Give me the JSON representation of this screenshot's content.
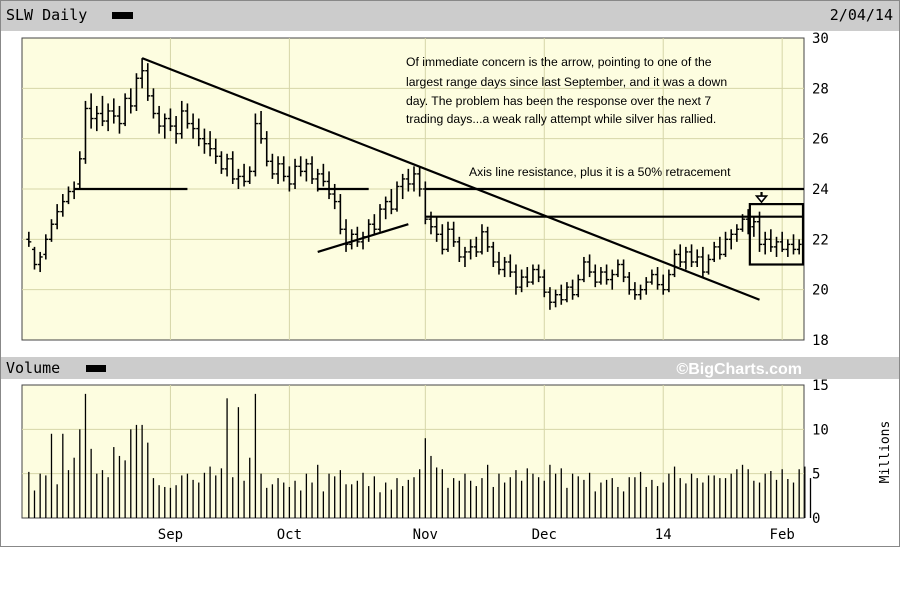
{
  "header": {
    "symbol_label": "SLW Daily",
    "date": "2/04/14"
  },
  "volume_header": {
    "label": "Volume"
  },
  "watermark": "©BigCharts.com",
  "volume_axis_unit": "Millions",
  "annotations": {
    "note_lines": [
      "Of immediate concern is the arrow, pointing to one of the",
      "largest range days since last September, and it was a down",
      "day.  The problem has been the response over the next 7",
      "trading days...a weak rally attempt while silver has rallied."
    ],
    "resistance_label": "Axis line resistance, plus it is a 50% retracement"
  },
  "colors": {
    "plot_bg": "#fdfde0",
    "header_bg": "#cccccc",
    "grid": "#d6d6a8",
    "price": "#000000",
    "trendline": "#000000"
  },
  "chart_data": [
    {
      "type": "ohlc",
      "title": "SLW Daily",
      "ylim": [
        18,
        30
      ],
      "y_ticks": [
        18,
        20,
        22,
        24,
        26,
        28,
        30
      ],
      "y_axis_side": "right",
      "grid": true,
      "x_ticks": [
        {
          "label": "Sep",
          "index": 25
        },
        {
          "label": "Oct",
          "index": 46
        },
        {
          "label": "Nov",
          "index": 70
        },
        {
          "label": "Dec",
          "index": 91
        },
        {
          "label": "14",
          "index": 112
        },
        {
          "label": "Feb",
          "index": 133
        }
      ],
      "bars": [
        {
          "o": 22.0,
          "h": 22.3,
          "l": 21.7,
          "c": 21.9
        },
        {
          "o": 21.6,
          "h": 21.7,
          "l": 20.8,
          "c": 21.0
        },
        {
          "o": 21.0,
          "h": 21.5,
          "l": 20.7,
          "c": 21.3
        },
        {
          "o": 21.4,
          "h": 22.2,
          "l": 21.2,
          "c": 22.0
        },
        {
          "o": 22.0,
          "h": 22.8,
          "l": 21.9,
          "c": 22.6
        },
        {
          "o": 22.6,
          "h": 23.4,
          "l": 22.4,
          "c": 23.1
        },
        {
          "o": 23.1,
          "h": 23.8,
          "l": 22.9,
          "c": 23.5
        },
        {
          "o": 23.5,
          "h": 24.1,
          "l": 23.4,
          "c": 23.9
        },
        {
          "o": 23.9,
          "h": 24.3,
          "l": 23.6,
          "c": 24.0
        },
        {
          "o": 24.2,
          "h": 25.5,
          "l": 24.0,
          "c": 25.2
        },
        {
          "o": 25.2,
          "h": 27.5,
          "l": 25.0,
          "c": 27.2
        },
        {
          "o": 27.2,
          "h": 27.8,
          "l": 26.4,
          "c": 26.8
        },
        {
          "o": 26.8,
          "h": 27.3,
          "l": 26.3,
          "c": 27.0
        },
        {
          "o": 27.0,
          "h": 27.7,
          "l": 26.5,
          "c": 26.7
        },
        {
          "o": 26.7,
          "h": 27.4,
          "l": 26.3,
          "c": 27.1
        },
        {
          "o": 27.1,
          "h": 27.6,
          "l": 26.6,
          "c": 26.9
        },
        {
          "o": 26.9,
          "h": 27.3,
          "l": 26.2,
          "c": 26.6
        },
        {
          "o": 26.6,
          "h": 27.8,
          "l": 26.5,
          "c": 27.6
        },
        {
          "o": 27.6,
          "h": 28.0,
          "l": 27.0,
          "c": 27.3
        },
        {
          "o": 27.3,
          "h": 28.6,
          "l": 27.1,
          "c": 28.4
        },
        {
          "o": 28.4,
          "h": 29.2,
          "l": 28.0,
          "c": 28.7
        },
        {
          "o": 28.7,
          "h": 29.0,
          "l": 27.5,
          "c": 27.7
        },
        {
          "o": 27.7,
          "h": 28.0,
          "l": 26.8,
          "c": 27.0
        },
        {
          "o": 27.0,
          "h": 27.3,
          "l": 26.2,
          "c": 26.5
        },
        {
          "o": 26.5,
          "h": 27.0,
          "l": 26.0,
          "c": 26.8
        },
        {
          "o": 26.8,
          "h": 27.2,
          "l": 26.3,
          "c": 26.5
        },
        {
          "o": 26.5,
          "h": 26.9,
          "l": 25.8,
          "c": 26.2
        },
        {
          "o": 26.2,
          "h": 27.5,
          "l": 26.0,
          "c": 27.1
        },
        {
          "o": 27.1,
          "h": 27.4,
          "l": 26.4,
          "c": 26.6
        },
        {
          "o": 26.6,
          "h": 27.0,
          "l": 26.0,
          "c": 26.4
        },
        {
          "o": 26.4,
          "h": 26.8,
          "l": 25.7,
          "c": 26.0
        },
        {
          "o": 26.0,
          "h": 26.4,
          "l": 25.4,
          "c": 25.8
        },
        {
          "o": 25.8,
          "h": 26.3,
          "l": 25.3,
          "c": 25.6
        },
        {
          "o": 25.6,
          "h": 26.0,
          "l": 25.0,
          "c": 25.3
        },
        {
          "o": 25.3,
          "h": 25.5,
          "l": 24.6,
          "c": 24.8
        },
        {
          "o": 24.8,
          "h": 25.4,
          "l": 24.5,
          "c": 25.2
        },
        {
          "o": 25.2,
          "h": 25.5,
          "l": 24.2,
          "c": 24.4
        },
        {
          "o": 24.4,
          "h": 24.8,
          "l": 24.0,
          "c": 24.5
        },
        {
          "o": 24.5,
          "h": 25.0,
          "l": 24.1,
          "c": 24.3
        },
        {
          "o": 24.3,
          "h": 24.9,
          "l": 24.2,
          "c": 24.7
        },
        {
          "o": 24.7,
          "h": 27.0,
          "l": 24.5,
          "c": 26.6
        },
        {
          "o": 26.6,
          "h": 27.1,
          "l": 25.8,
          "c": 26.0
        },
        {
          "o": 26.0,
          "h": 26.3,
          "l": 24.9,
          "c": 25.1
        },
        {
          "o": 25.1,
          "h": 25.4,
          "l": 24.4,
          "c": 24.6
        },
        {
          "o": 24.6,
          "h": 25.3,
          "l": 24.2,
          "c": 25.0
        },
        {
          "o": 25.0,
          "h": 25.3,
          "l": 24.3,
          "c": 24.5
        },
        {
          "o": 24.5,
          "h": 24.9,
          "l": 23.9,
          "c": 24.2
        },
        {
          "o": 24.2,
          "h": 25.2,
          "l": 24.0,
          "c": 24.9
        },
        {
          "o": 24.9,
          "h": 25.3,
          "l": 24.5,
          "c": 24.7
        },
        {
          "o": 24.7,
          "h": 25.2,
          "l": 24.3,
          "c": 25.0
        },
        {
          "o": 25.0,
          "h": 25.3,
          "l": 24.2,
          "c": 24.4
        },
        {
          "o": 24.4,
          "h": 24.8,
          "l": 23.9,
          "c": 24.6
        },
        {
          "o": 24.6,
          "h": 25.0,
          "l": 24.1,
          "c": 24.3
        },
        {
          "o": 24.3,
          "h": 24.7,
          "l": 23.6,
          "c": 23.8
        },
        {
          "o": 23.8,
          "h": 24.2,
          "l": 23.2,
          "c": 23.5
        },
        {
          "o": 23.5,
          "h": 23.8,
          "l": 22.2,
          "c": 22.4
        },
        {
          "o": 22.4,
          "h": 22.8,
          "l": 21.5,
          "c": 21.8
        },
        {
          "o": 21.8,
          "h": 22.4,
          "l": 21.6,
          "c": 22.2
        },
        {
          "o": 22.2,
          "h": 22.5,
          "l": 21.7,
          "c": 21.9
        },
        {
          "o": 21.9,
          "h": 22.3,
          "l": 21.6,
          "c": 22.1
        },
        {
          "o": 22.1,
          "h": 22.8,
          "l": 21.9,
          "c": 22.6
        },
        {
          "o": 22.6,
          "h": 23.0,
          "l": 22.2,
          "c": 22.4
        },
        {
          "o": 22.4,
          "h": 23.4,
          "l": 22.3,
          "c": 23.2
        },
        {
          "o": 23.2,
          "h": 23.7,
          "l": 22.8,
          "c": 23.5
        },
        {
          "o": 23.5,
          "h": 24.0,
          "l": 23.0,
          "c": 23.2
        },
        {
          "o": 23.2,
          "h": 24.3,
          "l": 23.1,
          "c": 24.1
        },
        {
          "o": 24.1,
          "h": 24.6,
          "l": 23.6,
          "c": 24.4
        },
        {
          "o": 24.4,
          "h": 24.8,
          "l": 23.9,
          "c": 24.2
        },
        {
          "o": 24.2,
          "h": 24.9,
          "l": 23.9,
          "c": 24.6
        },
        {
          "o": 24.6,
          "h": 24.9,
          "l": 23.7,
          "c": 24.0
        },
        {
          "o": 24.0,
          "h": 24.3,
          "l": 22.6,
          "c": 22.8
        },
        {
          "o": 22.8,
          "h": 23.1,
          "l": 22.2,
          "c": 22.5
        },
        {
          "o": 22.5,
          "h": 22.9,
          "l": 21.9,
          "c": 22.2
        },
        {
          "o": 22.2,
          "h": 22.6,
          "l": 21.4,
          "c": 21.6
        },
        {
          "o": 21.6,
          "h": 22.7,
          "l": 21.5,
          "c": 22.4
        },
        {
          "o": 22.4,
          "h": 22.7,
          "l": 21.7,
          "c": 21.9
        },
        {
          "o": 21.9,
          "h": 22.1,
          "l": 21.1,
          "c": 21.3
        },
        {
          "o": 21.3,
          "h": 21.7,
          "l": 20.9,
          "c": 21.5
        },
        {
          "o": 21.5,
          "h": 22.0,
          "l": 21.2,
          "c": 21.7
        },
        {
          "o": 21.7,
          "h": 22.1,
          "l": 21.3,
          "c": 21.5
        },
        {
          "o": 21.5,
          "h": 22.6,
          "l": 21.4,
          "c": 22.3
        },
        {
          "o": 22.3,
          "h": 22.5,
          "l": 21.5,
          "c": 21.7
        },
        {
          "o": 21.7,
          "h": 21.9,
          "l": 20.9,
          "c": 21.1
        },
        {
          "o": 21.1,
          "h": 21.5,
          "l": 20.6,
          "c": 20.8
        },
        {
          "o": 20.8,
          "h": 21.3,
          "l": 20.5,
          "c": 21.1
        },
        {
          "o": 21.1,
          "h": 21.4,
          "l": 20.5,
          "c": 20.7
        },
        {
          "o": 20.7,
          "h": 21.0,
          "l": 19.8,
          "c": 20.1
        },
        {
          "o": 20.1,
          "h": 20.8,
          "l": 19.9,
          "c": 20.5
        },
        {
          "o": 20.5,
          "h": 20.9,
          "l": 20.1,
          "c": 20.3
        },
        {
          "o": 20.3,
          "h": 21.0,
          "l": 20.2,
          "c": 20.8
        },
        {
          "o": 20.8,
          "h": 21.0,
          "l": 20.3,
          "c": 20.5
        },
        {
          "o": 20.5,
          "h": 20.8,
          "l": 19.7,
          "c": 19.9
        },
        {
          "o": 19.9,
          "h": 20.1,
          "l": 19.2,
          "c": 19.5
        },
        {
          "o": 19.5,
          "h": 20.0,
          "l": 19.3,
          "c": 19.8
        },
        {
          "o": 19.8,
          "h": 20.2,
          "l": 19.4,
          "c": 19.6
        },
        {
          "o": 19.6,
          "h": 20.3,
          "l": 19.5,
          "c": 20.1
        },
        {
          "o": 20.1,
          "h": 20.4,
          "l": 19.6,
          "c": 19.8
        },
        {
          "o": 19.8,
          "h": 20.6,
          "l": 19.7,
          "c": 20.4
        },
        {
          "o": 20.4,
          "h": 21.3,
          "l": 20.3,
          "c": 21.1
        },
        {
          "o": 21.1,
          "h": 21.4,
          "l": 20.5,
          "c": 20.7
        },
        {
          "o": 20.7,
          "h": 21.0,
          "l": 20.1,
          "c": 20.3
        },
        {
          "o": 20.3,
          "h": 20.9,
          "l": 20.2,
          "c": 20.7
        },
        {
          "o": 20.7,
          "h": 21.0,
          "l": 20.2,
          "c": 20.4
        },
        {
          "o": 20.4,
          "h": 20.8,
          "l": 20.0,
          "c": 20.6
        },
        {
          "o": 20.6,
          "h": 21.2,
          "l": 20.5,
          "c": 21.0
        },
        {
          "o": 21.0,
          "h": 21.2,
          "l": 20.3,
          "c": 20.5
        },
        {
          "o": 20.5,
          "h": 20.7,
          "l": 19.8,
          "c": 20.0
        },
        {
          "o": 20.0,
          "h": 20.3,
          "l": 19.6,
          "c": 19.8
        },
        {
          "o": 19.8,
          "h": 20.2,
          "l": 19.6,
          "c": 20.0
        },
        {
          "o": 20.0,
          "h": 20.5,
          "l": 19.8,
          "c": 20.3
        },
        {
          "o": 20.3,
          "h": 20.8,
          "l": 20.2,
          "c": 20.6
        },
        {
          "o": 20.6,
          "h": 20.9,
          "l": 20.0,
          "c": 20.2
        },
        {
          "o": 20.2,
          "h": 20.6,
          "l": 19.8,
          "c": 20.0
        },
        {
          "o": 20.0,
          "h": 20.8,
          "l": 19.9,
          "c": 20.6
        },
        {
          "o": 20.6,
          "h": 21.6,
          "l": 20.5,
          "c": 21.4
        },
        {
          "o": 21.4,
          "h": 21.8,
          "l": 20.9,
          "c": 21.1
        },
        {
          "o": 21.1,
          "h": 21.7,
          "l": 20.8,
          "c": 21.5
        },
        {
          "o": 21.5,
          "h": 21.8,
          "l": 20.9,
          "c": 21.1
        },
        {
          "o": 21.1,
          "h": 21.6,
          "l": 20.9,
          "c": 21.3
        },
        {
          "o": 21.3,
          "h": 21.7,
          "l": 20.5,
          "c": 20.7
        },
        {
          "o": 20.7,
          "h": 21.4,
          "l": 20.6,
          "c": 21.2
        },
        {
          "o": 21.2,
          "h": 21.9,
          "l": 21.1,
          "c": 21.7
        },
        {
          "o": 21.7,
          "h": 22.1,
          "l": 21.2,
          "c": 21.4
        },
        {
          "o": 21.4,
          "h": 22.3,
          "l": 21.3,
          "c": 22.0
        },
        {
          "o": 22.0,
          "h": 22.4,
          "l": 21.6,
          "c": 22.2
        },
        {
          "o": 22.2,
          "h": 22.6,
          "l": 21.9,
          "c": 22.4
        },
        {
          "o": 22.4,
          "h": 23.0,
          "l": 22.3,
          "c": 22.8
        },
        {
          "o": 22.8,
          "h": 23.2,
          "l": 22.2,
          "c": 22.5
        },
        {
          "o": 22.5,
          "h": 22.9,
          "l": 22.1,
          "c": 22.7
        },
        {
          "o": 22.7,
          "h": 23.1,
          "l": 21.5,
          "c": 21.8
        },
        {
          "o": 21.8,
          "h": 22.3,
          "l": 21.4,
          "c": 22.0
        },
        {
          "o": 22.0,
          "h": 22.4,
          "l": 21.5,
          "c": 21.7
        },
        {
          "o": 21.7,
          "h": 22.1,
          "l": 21.3,
          "c": 21.9
        },
        {
          "o": 21.9,
          "h": 22.3,
          "l": 21.5,
          "c": 21.6
        },
        {
          "o": 21.6,
          "h": 22.0,
          "l": 21.3,
          "c": 21.8
        },
        {
          "o": 21.8,
          "h": 22.2,
          "l": 21.4,
          "c": 21.6
        },
        {
          "o": 21.6,
          "h": 22.0,
          "l": 21.4,
          "c": 21.8
        }
      ],
      "overlays": {
        "trendlines": [
          {
            "from": {
              "index": 20,
              "price": 29.2
            },
            "to": {
              "index": 129,
              "price": 19.6
            }
          },
          {
            "from": {
              "index": 51,
              "price": 21.5
            },
            "to": {
              "index": 67,
              "price": 22.6
            }
          }
        ],
        "horizontal_lines": [
          {
            "price": 24.0,
            "from_index": 8,
            "to_index": 28
          },
          {
            "price": 24.0,
            "from_index": 51,
            "to_index": 60
          },
          {
            "price": 24.0,
            "from_index": 70,
            "to_index": 138
          },
          {
            "price": 22.9,
            "from_index": 70,
            "to_index": 138
          }
        ],
        "highlight_box": {
          "from_index": 128,
          "to_index": 138,
          "price_low": 21.0,
          "price_high": 23.4
        },
        "arrow": {
          "index": 129,
          "price_from": 24.0,
          "price_to": 23.4
        }
      }
    },
    {
      "type": "bar",
      "title": "Volume",
      "ylabel": "Millions",
      "ylim": [
        0,
        15
      ],
      "y_ticks": [
        0,
        5,
        10,
        15
      ],
      "y_axis_side": "right",
      "grid": true,
      "values": [
        5.2,
        3.1,
        5.0,
        4.8,
        9.5,
        3.8,
        9.5,
        5.4,
        6.8,
        10.0,
        14.0,
        7.8,
        5.0,
        5.4,
        4.6,
        8.0,
        7.0,
        6.5,
        10.0,
        10.5,
        10.5,
        8.5,
        4.5,
        3.7,
        3.5,
        3.4,
        3.7,
        4.8,
        5.0,
        4.3,
        4.0,
        5.1,
        5.8,
        4.8,
        5.6,
        13.5,
        4.6,
        12.5,
        4.2,
        6.8,
        14.0,
        5.0,
        3.4,
        3.8,
        4.5,
        4.0,
        3.5,
        4.2,
        3.1,
        5.0,
        4.0,
        6.0,
        3.0,
        5.0,
        4.7,
        5.4,
        3.8,
        3.8,
        4.2,
        5.1,
        3.6,
        4.7,
        2.9,
        4.0,
        3.2,
        4.5,
        3.6,
        4.3,
        4.6,
        5.5,
        9.0,
        7.0,
        5.7,
        5.5,
        3.4,
        4.5,
        4.2,
        5.0,
        4.2,
        3.6,
        4.5,
        6.0,
        3.5,
        5.0,
        4.0,
        4.6,
        5.4,
        4.2,
        5.6,
        5.0,
        4.6,
        4.2,
        6.0,
        5.0,
        5.6,
        3.4,
        5.0,
        4.7,
        4.3,
        5.1,
        3.0,
        4.0,
        4.3,
        4.5,
        3.5,
        3.0,
        4.6,
        4.6,
        5.2,
        3.5,
        4.3,
        3.6,
        4.0,
        5.0,
        5.8,
        4.5,
        3.9,
        5.0,
        4.5,
        4.0,
        4.8,
        4.8,
        4.5,
        4.5,
        5.0,
        5.5,
        6.0,
        5.5,
        4.2,
        4.0,
        5.0,
        5.3,
        4.3,
        5.5,
        4.4,
        4.0,
        5.5,
        5.8,
        4.5
      ],
      "x_ticks": [
        {
          "label": "Sep",
          "index": 25
        },
        {
          "label": "Oct",
          "index": 46
        },
        {
          "label": "Nov",
          "index": 70
        },
        {
          "label": "Dec",
          "index": 91
        },
        {
          "label": "14",
          "index": 112
        },
        {
          "label": "Feb",
          "index": 133
        }
      ]
    }
  ]
}
